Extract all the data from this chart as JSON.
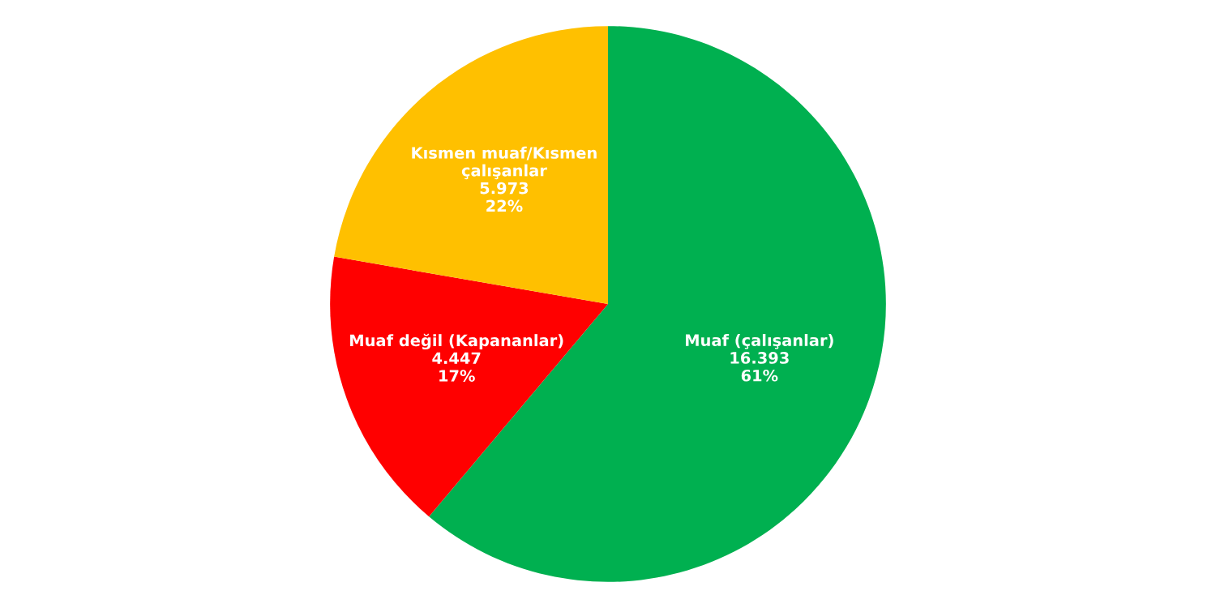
{
  "chart_data": {
    "type": "pie",
    "categories": [
      "Muaf (çalışanlar)",
      "Muaf değil (Kapananlar)",
      "Kısmen muaf/Kısmen çalışanlar"
    ],
    "values": [
      16393,
      4447,
      5973
    ],
    "value_labels": [
      "16.393\n61%",
      "4.447\n17%",
      "5.973\n22%"
    ],
    "colors": [
      "#00b050",
      "#ff0000",
      "#ffc000"
    ]
  }
}
